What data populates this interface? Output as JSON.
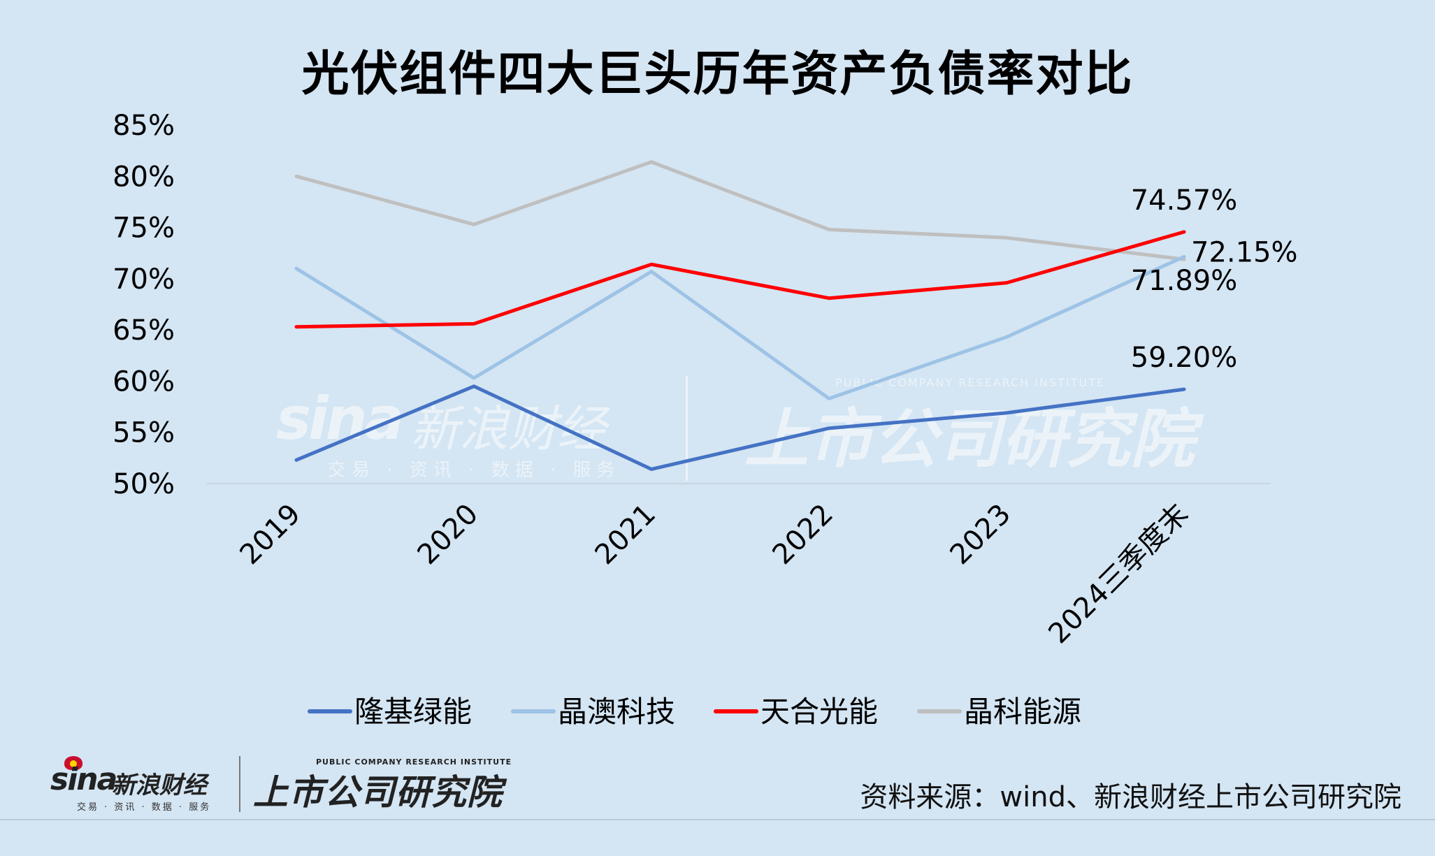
{
  "watermark": {
    "sina": "sina",
    "cn": "新浪财经",
    "sub": "交易 · 资讯 · 数据 · 服务",
    "research_cn": "上市公司研究院",
    "research_en": "PUBLIC COMPANY RESEARCH INSTITUTE"
  },
  "footer": {
    "source": "资料来源：wind、新浪财经上市公司研究院",
    "logo_sina": "sina",
    "logo_sina_cn": "新浪财经",
    "logo_sina_sub": "交易 · 资讯 · 数据 · 服务",
    "logo_research_en": "PUBLIC COMPANY RESEARCH INSTITUTE",
    "logo_research_cn": "上市公司研究院"
  },
  "chart_data": {
    "type": "line",
    "title": "光伏组件四大巨头历年资产负债率对比",
    "categories": [
      "2019",
      "2020",
      "2021",
      "2022",
      "2023",
      "2024三季度末"
    ],
    "y_ticks": [
      "85%",
      "80%",
      "75%",
      "70%",
      "65%",
      "60%",
      "55%",
      "50%"
    ],
    "ylim": [
      50,
      85
    ],
    "y_unit": "%",
    "grid": false,
    "legend_position": "bottom",
    "series": [
      {
        "name": "隆基绿能",
        "color": "#4472c4",
        "values": [
          52.3,
          59.5,
          51.4,
          55.4,
          56.9,
          59.2
        ]
      },
      {
        "name": "晶澳科技",
        "color": "#9dc3e6",
        "values": [
          71.0,
          60.3,
          70.7,
          58.3,
          64.3,
          72.15
        ]
      },
      {
        "name": "天合光能",
        "color": "#ff0000",
        "values": [
          65.3,
          65.6,
          71.4,
          68.1,
          69.6,
          74.57
        ]
      },
      {
        "name": "晶科能源",
        "color": "#bfbfbf",
        "values": [
          80.0,
          75.3,
          81.4,
          74.8,
          74.0,
          71.89
        ]
      }
    ],
    "data_labels": [
      {
        "series": "天合光能",
        "index": 5,
        "text": "74.57%"
      },
      {
        "series": "晶澳科技",
        "index": 5,
        "text": "72.15%"
      },
      {
        "series": "晶科能源",
        "index": 5,
        "text": "71.89%"
      },
      {
        "series": "隆基绿能",
        "index": 5,
        "text": "59.20%"
      }
    ]
  }
}
